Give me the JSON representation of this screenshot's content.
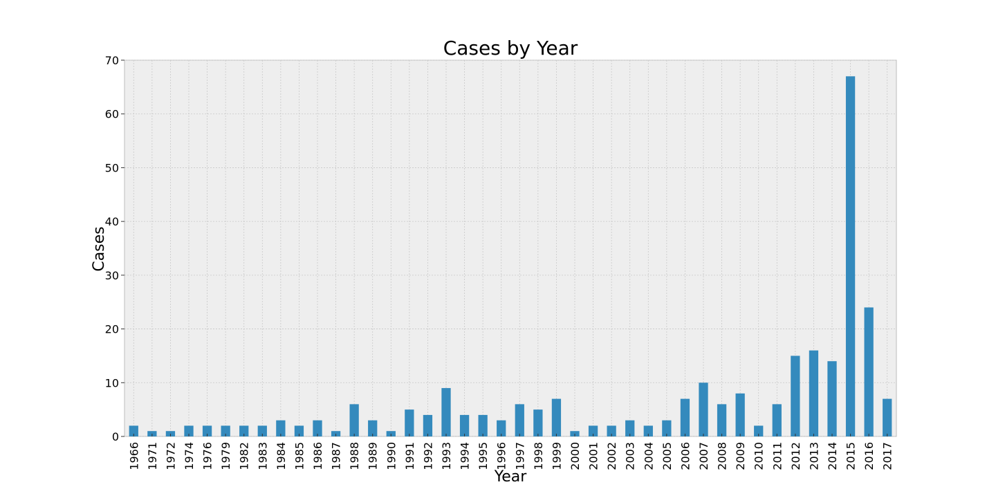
{
  "chart_data": {
    "type": "bar",
    "title": "Cases by Year",
    "xlabel": "Year",
    "ylabel": "Cases",
    "ylim": [
      0,
      70
    ],
    "yticks": [
      "0",
      "10",
      "20",
      "30",
      "40",
      "50",
      "60",
      "70"
    ],
    "grid": true,
    "categories": [
      "1966",
      "1971",
      "1972",
      "1974",
      "1976",
      "1979",
      "1982",
      "1983",
      "1984",
      "1985",
      "1986",
      "1987",
      "1988",
      "1989",
      "1990",
      "1991",
      "1992",
      "1993",
      "1994",
      "1995",
      "1996",
      "1997",
      "1998",
      "1999",
      "2000",
      "2001",
      "2002",
      "2003",
      "2004",
      "2005",
      "2006",
      "2007",
      "2008",
      "2009",
      "2010",
      "2011",
      "2012",
      "2013",
      "2014",
      "2015",
      "2016",
      "2017"
    ],
    "values": [
      2,
      1,
      1,
      2,
      2,
      2,
      2,
      2,
      3,
      2,
      3,
      1,
      6,
      3,
      1,
      5,
      4,
      9,
      4,
      4,
      3,
      6,
      5,
      7,
      1,
      2,
      2,
      3,
      2,
      3,
      7,
      10,
      6,
      8,
      2,
      6,
      15,
      16,
      14,
      67,
      24,
      7
    ],
    "colors": {
      "bar": "#348abd",
      "plot_bg": "#eeeeee",
      "grid": "#c8c8c8",
      "frame": "#bcbcbc"
    }
  }
}
